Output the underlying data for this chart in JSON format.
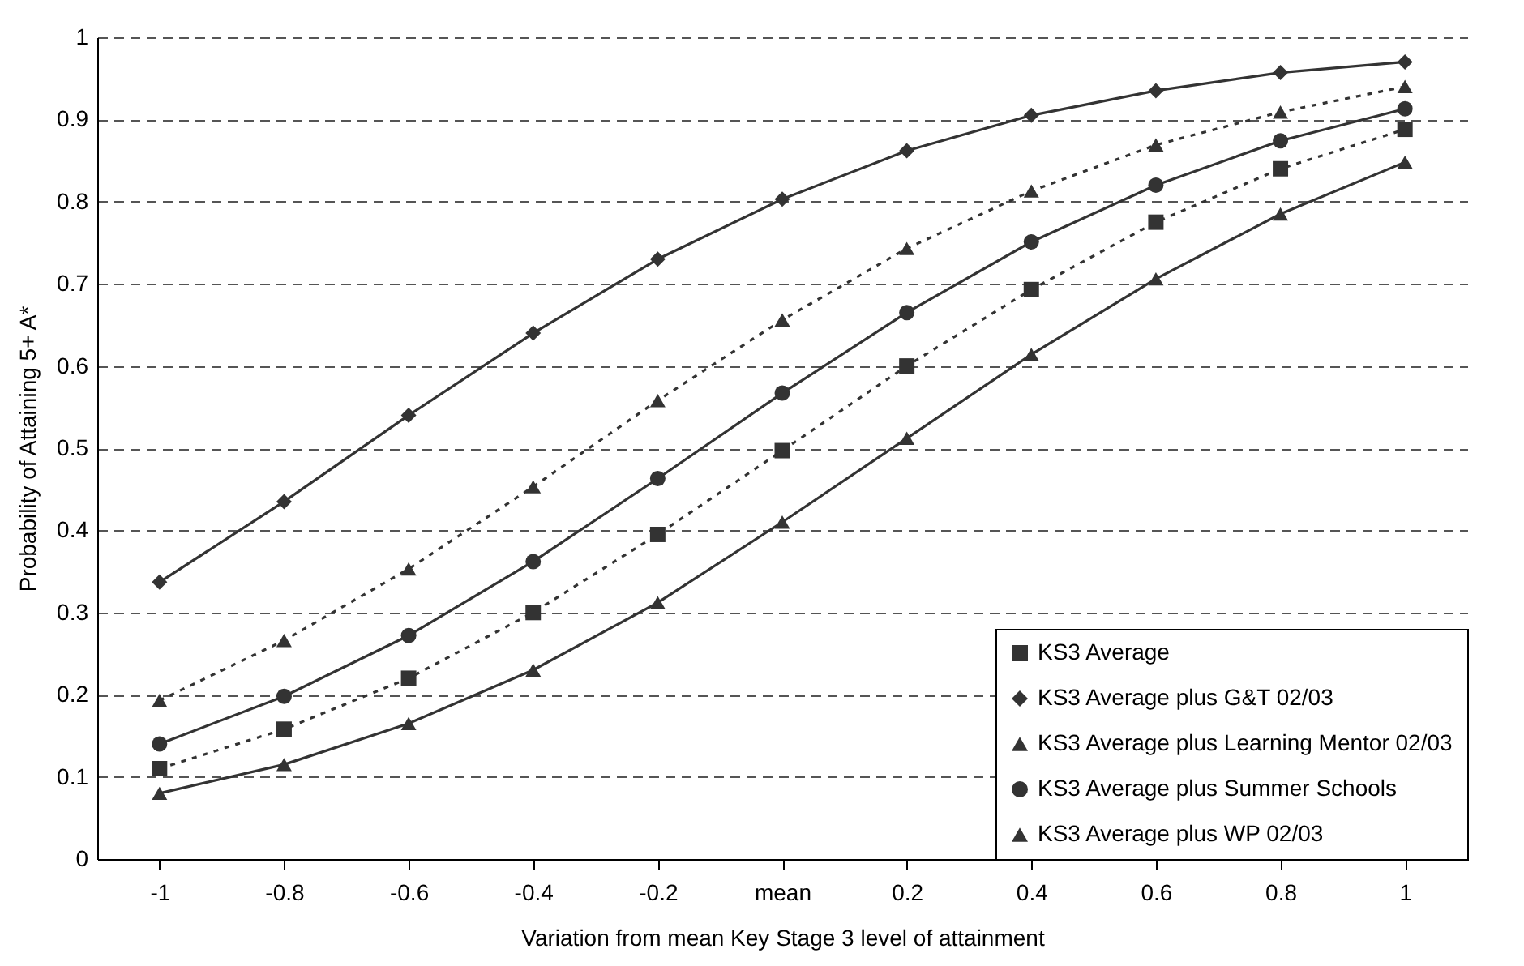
{
  "chart_data": {
    "type": "line",
    "xlabel": "Variation from mean Key Stage 3 level of attainment",
    "ylabel": "Probability of Attaining 5+ A*",
    "categories": [
      "-1",
      "-0.8",
      "-0.6",
      "-0.4",
      "-0.2",
      "mean",
      "0.2",
      "0.4",
      "0.6",
      "0.8",
      "1"
    ],
    "series": [
      {
        "name": "KS3 Average",
        "color": "#333333",
        "marker": "square",
        "line_style": "dotted",
        "values": [
          0.11,
          0.158,
          0.22,
          0.3,
          0.395,
          0.497,
          0.6,
          0.693,
          0.775,
          0.84,
          0.888
        ]
      },
      {
        "name": "KS3 Average plus G&T 02/03",
        "color": "#333333",
        "marker": "diamond",
        "line_style": "solid",
        "values": [
          0.337,
          0.435,
          0.54,
          0.64,
          0.73,
          0.803,
          0.862,
          0.905,
          0.935,
          0.957,
          0.97
        ]
      },
      {
        "name": "KS3 Average plus Learning Mentor 02/03",
        "color": "#333333",
        "marker": "triangle",
        "line_style": "solid",
        "values": [
          0.08,
          0.115,
          0.165,
          0.23,
          0.312,
          0.41,
          0.512,
          0.614,
          0.706,
          0.785,
          0.848
        ]
      },
      {
        "name": "KS3 Average plus Summer Schools",
        "color": "#333333",
        "marker": "circle",
        "line_style": "solid",
        "values": [
          0.14,
          0.198,
          0.272,
          0.362,
          0.463,
          0.567,
          0.665,
          0.751,
          0.82,
          0.874,
          0.913
        ]
      },
      {
        "name": "KS3 Average plus WP 02/03",
        "color": "#333333",
        "marker": "triangle",
        "line_style": "dotted",
        "values": [
          0.193,
          0.266,
          0.353,
          0.453,
          0.558,
          0.656,
          0.743,
          0.813,
          0.869,
          0.909,
          0.94
        ]
      }
    ],
    "ylim": [
      0,
      1
    ],
    "yticks": [
      0,
      0.1,
      0.2,
      0.3,
      0.4,
      0.5,
      0.6,
      0.7,
      0.8,
      0.9,
      1
    ],
    "grid": "y",
    "legend": "bottom right"
  }
}
